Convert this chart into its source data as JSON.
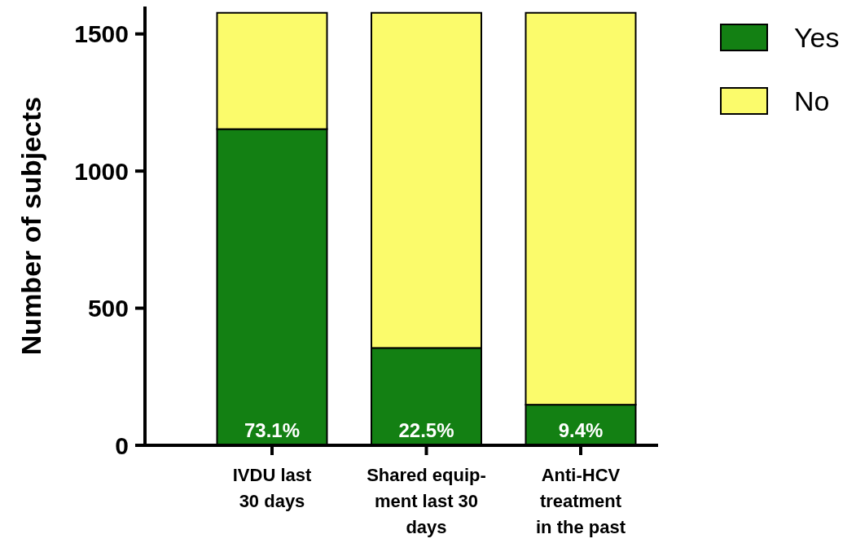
{
  "chart_data": {
    "type": "bar",
    "ylabel": "Number of subjects",
    "stacked": true,
    "categories": [
      "IVDU last\n30 days",
      "Shared equip-\nment last 30\ndays",
      "Anti-HCV\ntreatment\nin the past"
    ],
    "series": [
      {
        "name": "Yes",
        "color": "#138013",
        "values": [
          1153,
          355,
          148
        ]
      },
      {
        "name": "No",
        "color": "#fbfb6b",
        "values": [
          424,
          1222,
          1429
        ]
      }
    ],
    "annotations": [
      "73.1%",
      "22.5%",
      "9.4%"
    ],
    "ylim": [
      0,
      1600
    ],
    "yticks": [
      0,
      500,
      1000,
      1500
    ],
    "grid": false,
    "legend": "top right"
  }
}
